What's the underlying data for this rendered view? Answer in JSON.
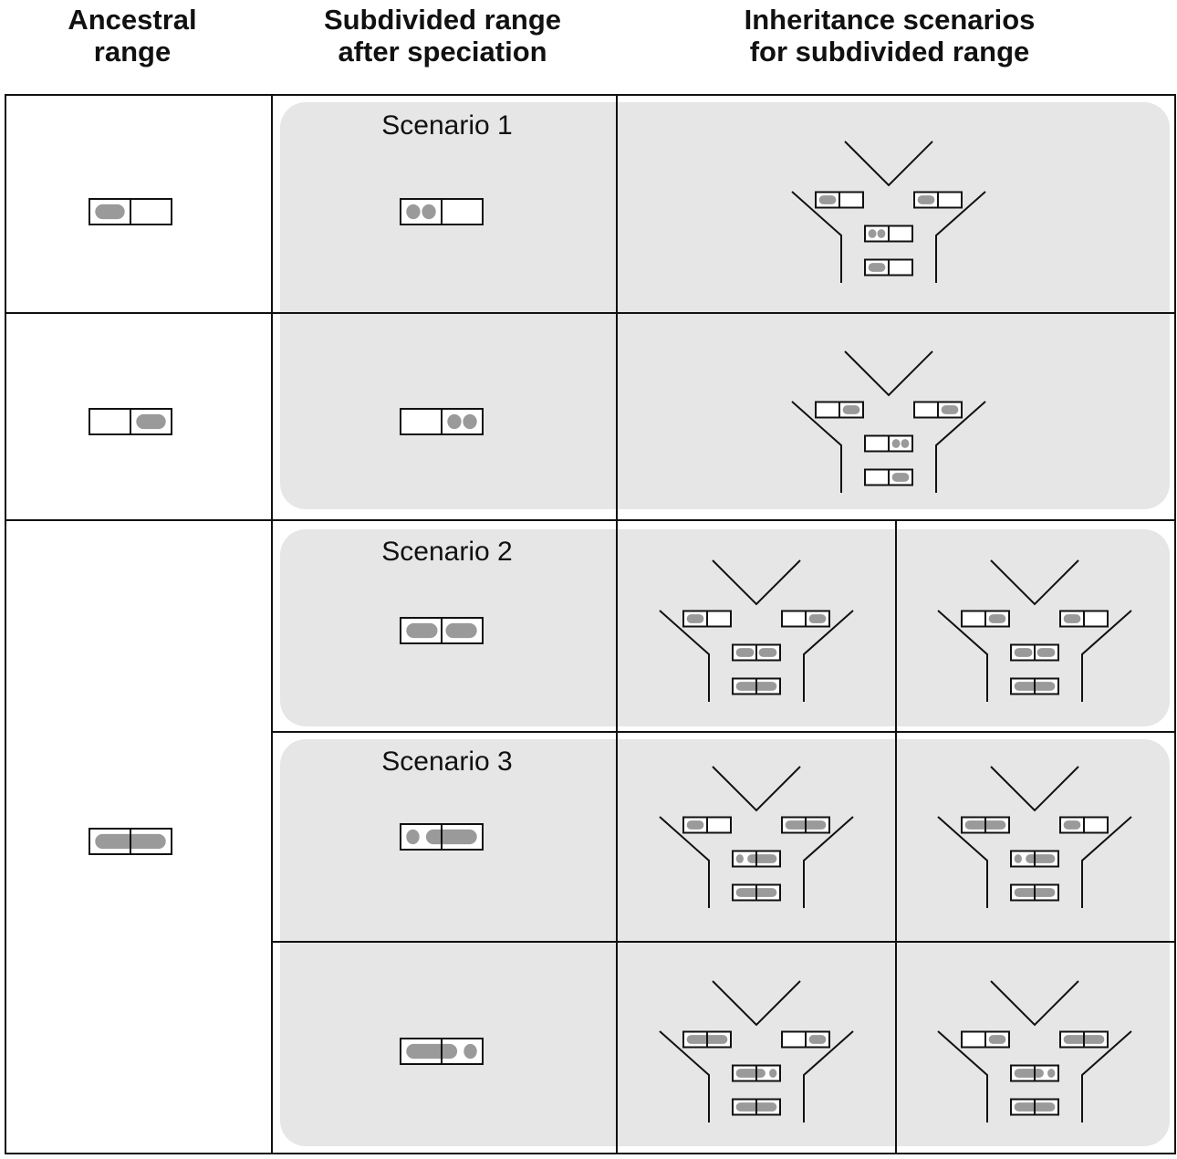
{
  "headers": {
    "col1": [
      "Ancestral",
      "range"
    ],
    "col2": [
      "Subdivided range",
      "after speciation"
    ],
    "col3": [
      "Inheritance scenarios",
      "for subdivided range"
    ]
  },
  "scenario_labels": [
    "Scenario 1",
    "Scenario 2",
    "Scenario 3"
  ],
  "colors": {
    "line": "#111111",
    "panel_fill": "#e6e6e6",
    "range_mark": "#9a9a9a",
    "background": "#ffffff"
  },
  "range_states": {
    "ancestral": [
      "A",
      "B",
      "AB"
    ],
    "subdivided": [
      "A-split",
      "B-split",
      "A+B",
      "a+AB",
      "AB+b"
    ]
  }
}
